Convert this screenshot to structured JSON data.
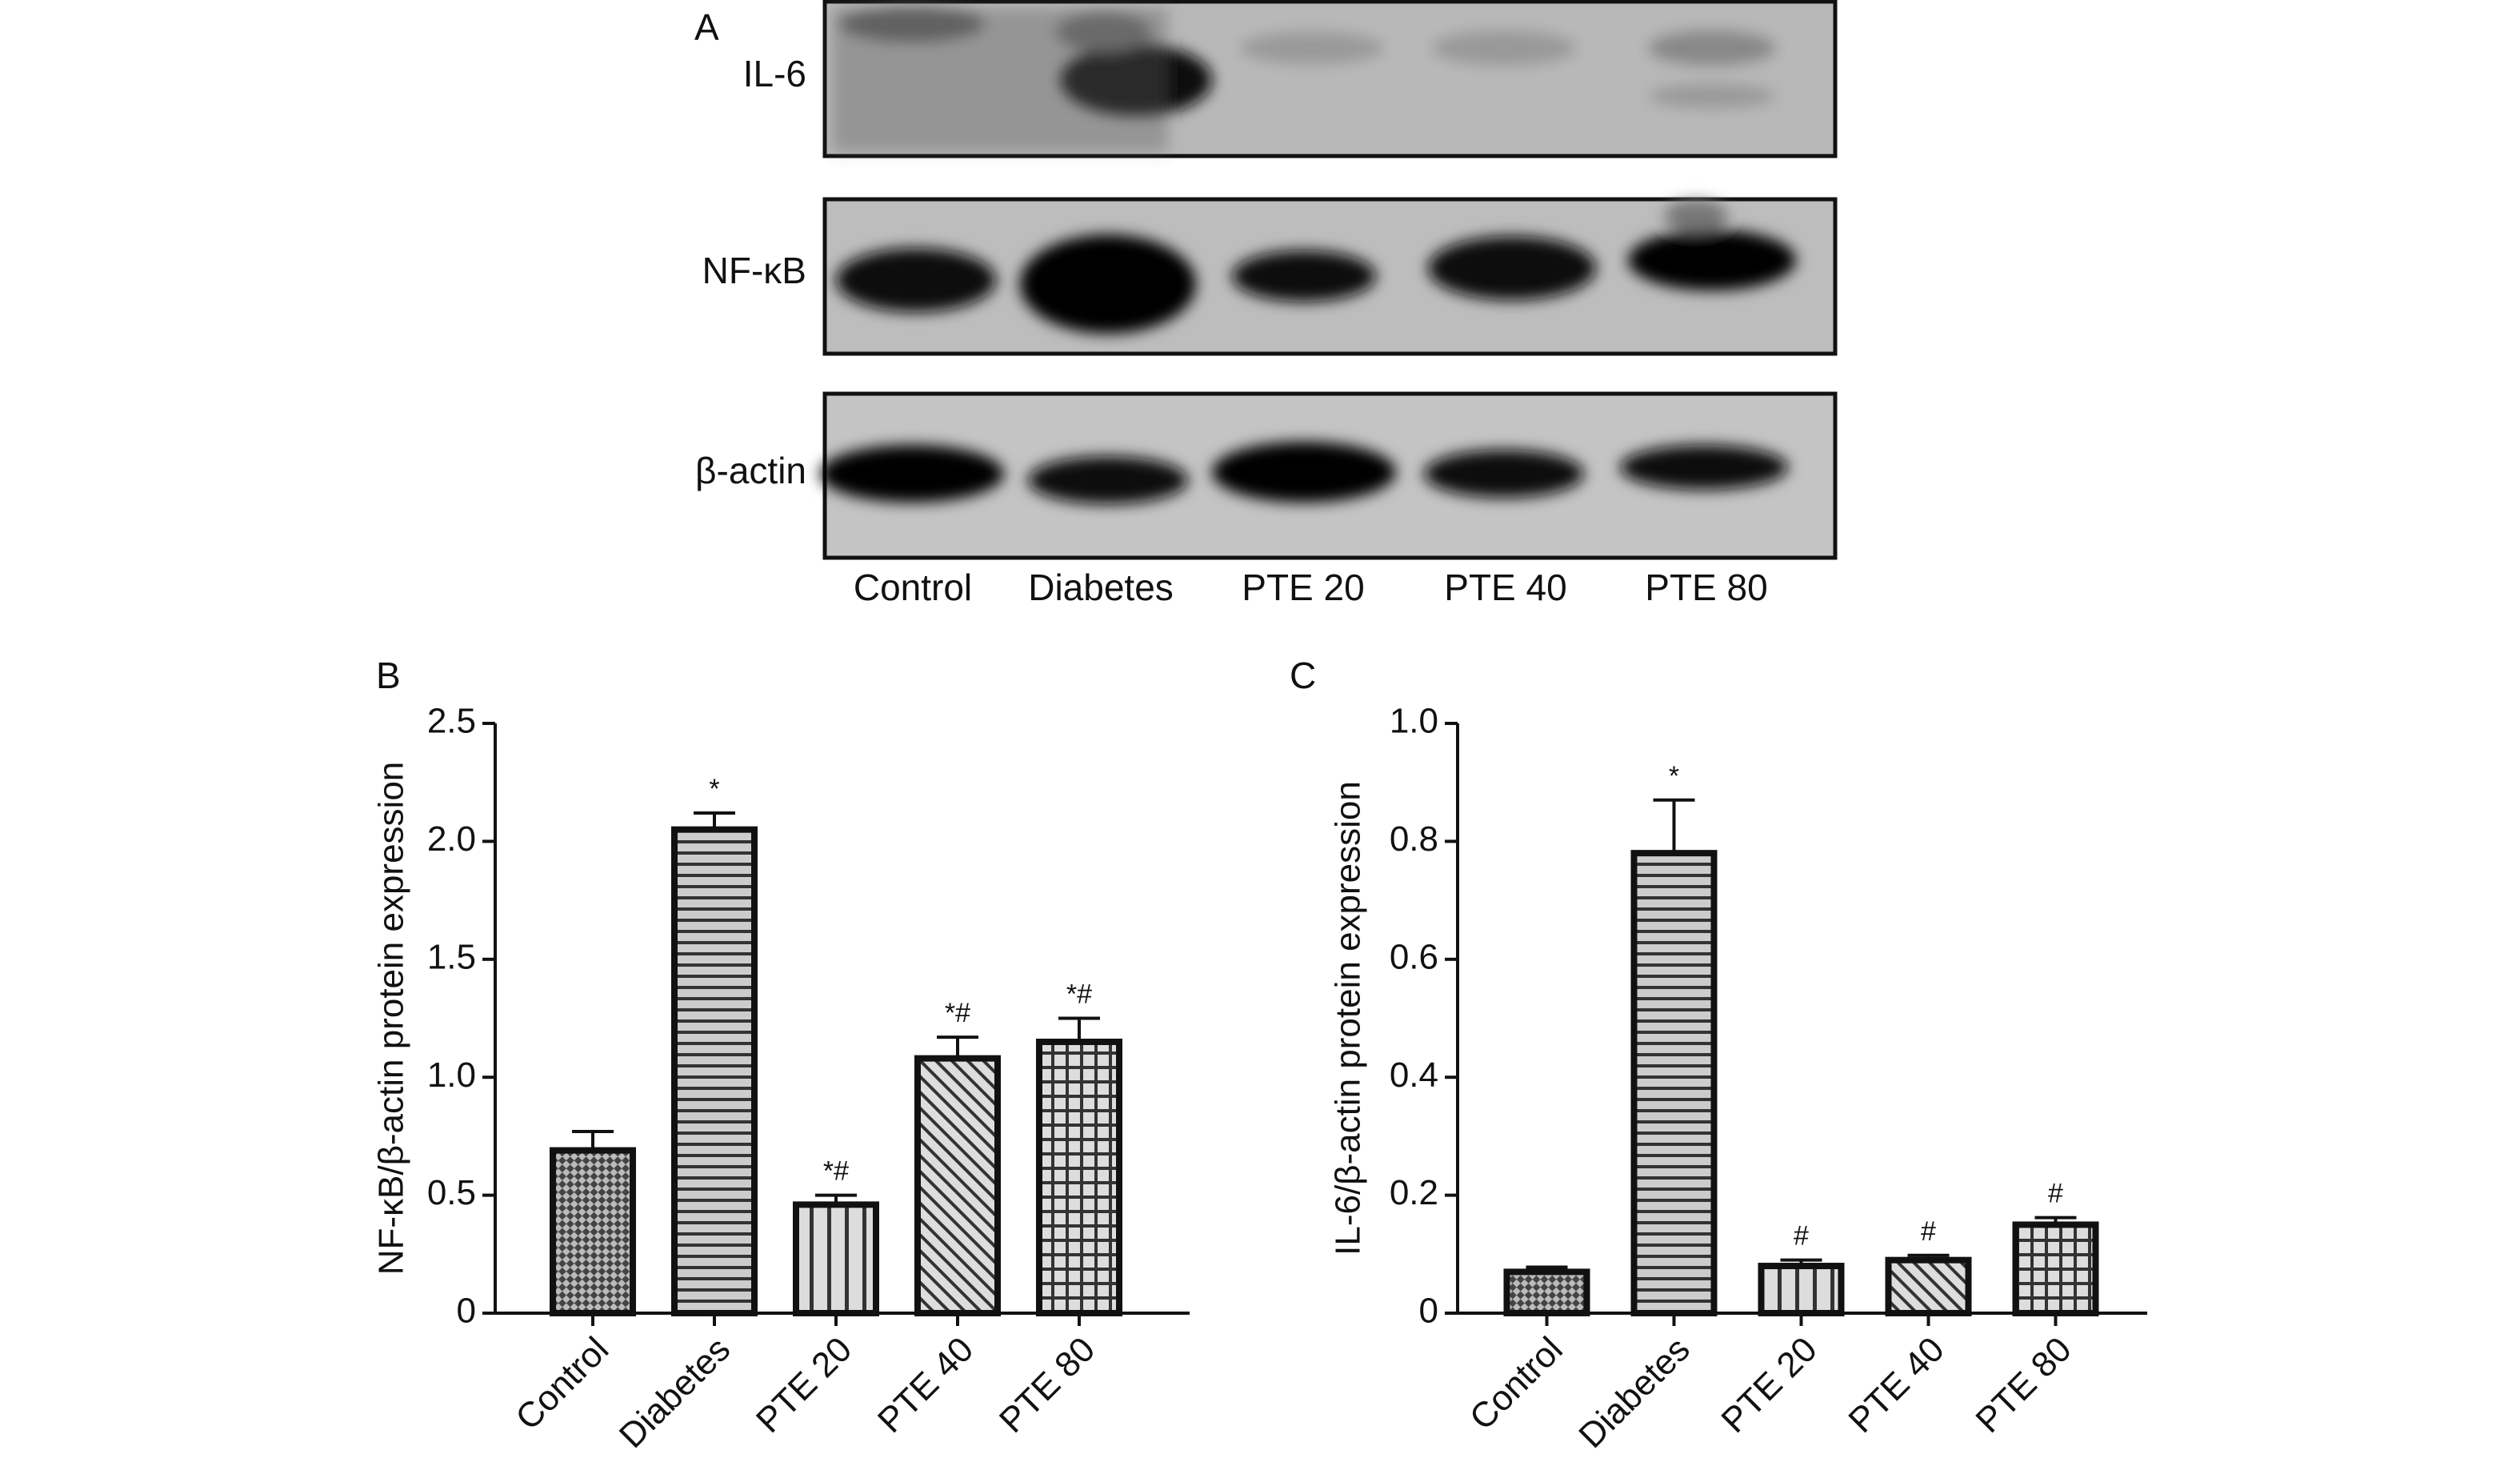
{
  "blot": {
    "panel": "A",
    "rows": [
      "IL-6",
      "NF-κB",
      "β-actin"
    ],
    "lanes": [
      "Control",
      "Diabetes",
      "PTE 20",
      "PTE 40",
      "PTE 80"
    ]
  },
  "chart_data": [
    {
      "type": "bar",
      "panel": "B",
      "ylabel": "NF-κB/β-actin protein expression",
      "categories": [
        "Control",
        "Diabetes",
        "PTE 20",
        "PTE 40",
        "PTE 80"
      ],
      "values": [
        0.69,
        2.05,
        0.46,
        1.08,
        1.15
      ],
      "errors": [
        0.08,
        0.07,
        0.04,
        0.09,
        0.1
      ],
      "annotations": [
        null,
        "*",
        "*#",
        "*#",
        "*#"
      ],
      "patterns": [
        "checker",
        "horizontal",
        "vertical",
        "diagonal",
        "grid"
      ],
      "ylim": [
        0,
        2.5
      ],
      "yticks": [
        0,
        0.5,
        {
          "value": 1,
          "label": "1.0"
        },
        1.5,
        {
          "value": 2,
          "label": "2.0"
        },
        2.5
      ]
    },
    {
      "type": "bar",
      "panel": "C",
      "ylabel": "IL-6/β-actin protein expression",
      "categories": [
        "Control",
        "Diabetes",
        "PTE 20",
        "PTE 40",
        "PTE 80"
      ],
      "values": [
        0.07,
        0.78,
        0.08,
        0.09,
        0.15
      ],
      "errors": [
        0.008,
        0.09,
        0.01,
        0.008,
        0.012
      ],
      "annotations": [
        null,
        "*",
        "#",
        "#",
        "#"
      ],
      "patterns": [
        "checker",
        "horizontal",
        "vertical",
        "diagonal",
        "grid"
      ],
      "ylim": [
        0,
        1
      ],
      "yticks": [
        0,
        0.2,
        0.4,
        0.6,
        0.8,
        {
          "value": 1,
          "label": "1.0"
        }
      ]
    }
  ]
}
